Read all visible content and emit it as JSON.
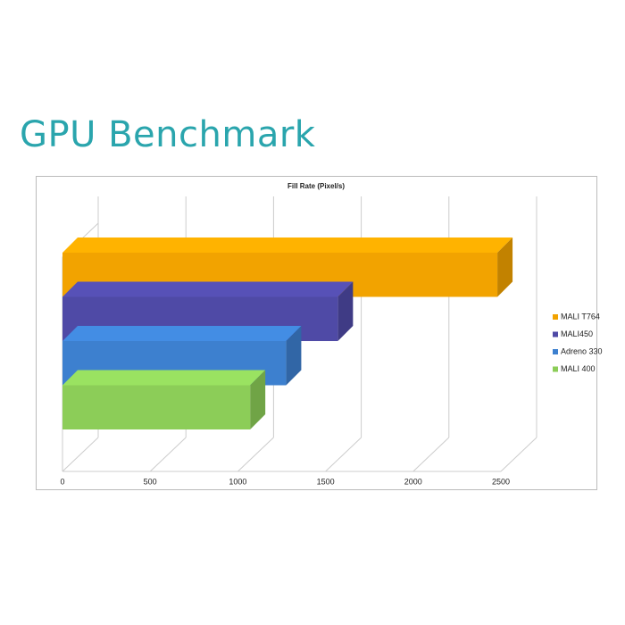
{
  "header": {
    "title": "GPU Benchmark"
  },
  "chart_data": {
    "type": "bar",
    "orientation": "horizontal",
    "title": "Fill Rate (Pixel/s)",
    "series": [
      {
        "name": "MALI T764",
        "color": "#f2a300",
        "values": [
          2480
        ]
      },
      {
        "name": "MALI450",
        "color": "#4f4aa6",
        "values": [
          1570
        ]
      },
      {
        "name": "Adreno 330",
        "color": "#3d80cf",
        "values": [
          1275
        ]
      },
      {
        "name": "MALI 400",
        "color": "#8ccd58",
        "values": [
          1070
        ]
      }
    ],
    "xlim": [
      0,
      2500
    ],
    "xticks": [
      0,
      500,
      1000,
      1500,
      2000,
      2500
    ],
    "grid": true,
    "legend": "right"
  }
}
